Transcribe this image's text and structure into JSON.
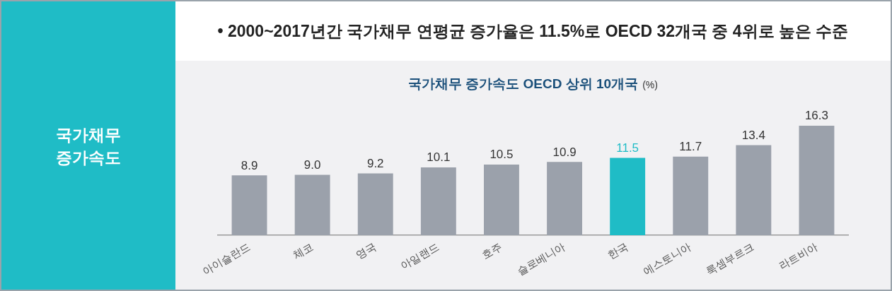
{
  "chart_data": {
    "type": "bar",
    "title": "국가채무 증가속도 OECD 상위 10개국",
    "ylabel": "(%)",
    "subtitle": "• 2000~2017년간 국가채무 연평균 증가율은 11.5%로 OECD 32개국 중 4위로 높은 수준",
    "annotations": [
      "국가채무 증가속도"
    ],
    "categories": [
      "아이슬란드",
      "체코",
      "영국",
      "아일랜드",
      "호주",
      "슬로베니아",
      "한국",
      "에스토니아",
      "룩셈부르크",
      "라트비아"
    ],
    "series": [
      {
        "color": "#9ba1ab",
        "colors": [
          "#9ba1ab",
          "#9ba1ab",
          "#9ba1ab",
          "#9ba1ab",
          "#9ba1ab",
          "#9ba1ab",
          "#1fbcc6",
          "#9ba1ab",
          "#9ba1ab",
          "#9ba1ab"
        ],
        "values": [
          8.9,
          9.0,
          9.2,
          10.1,
          10.5,
          10.9,
          11.5,
          11.7,
          13.4,
          16.3
        ],
        "value_labels": [
          "8.9",
          "9.0",
          "9.2",
          "10.1",
          "10.5",
          "10.9",
          "11.5",
          "11.7",
          "13.4",
          "16.3"
        ]
      }
    ],
    "grid": false,
    "legend": false
  }
}
